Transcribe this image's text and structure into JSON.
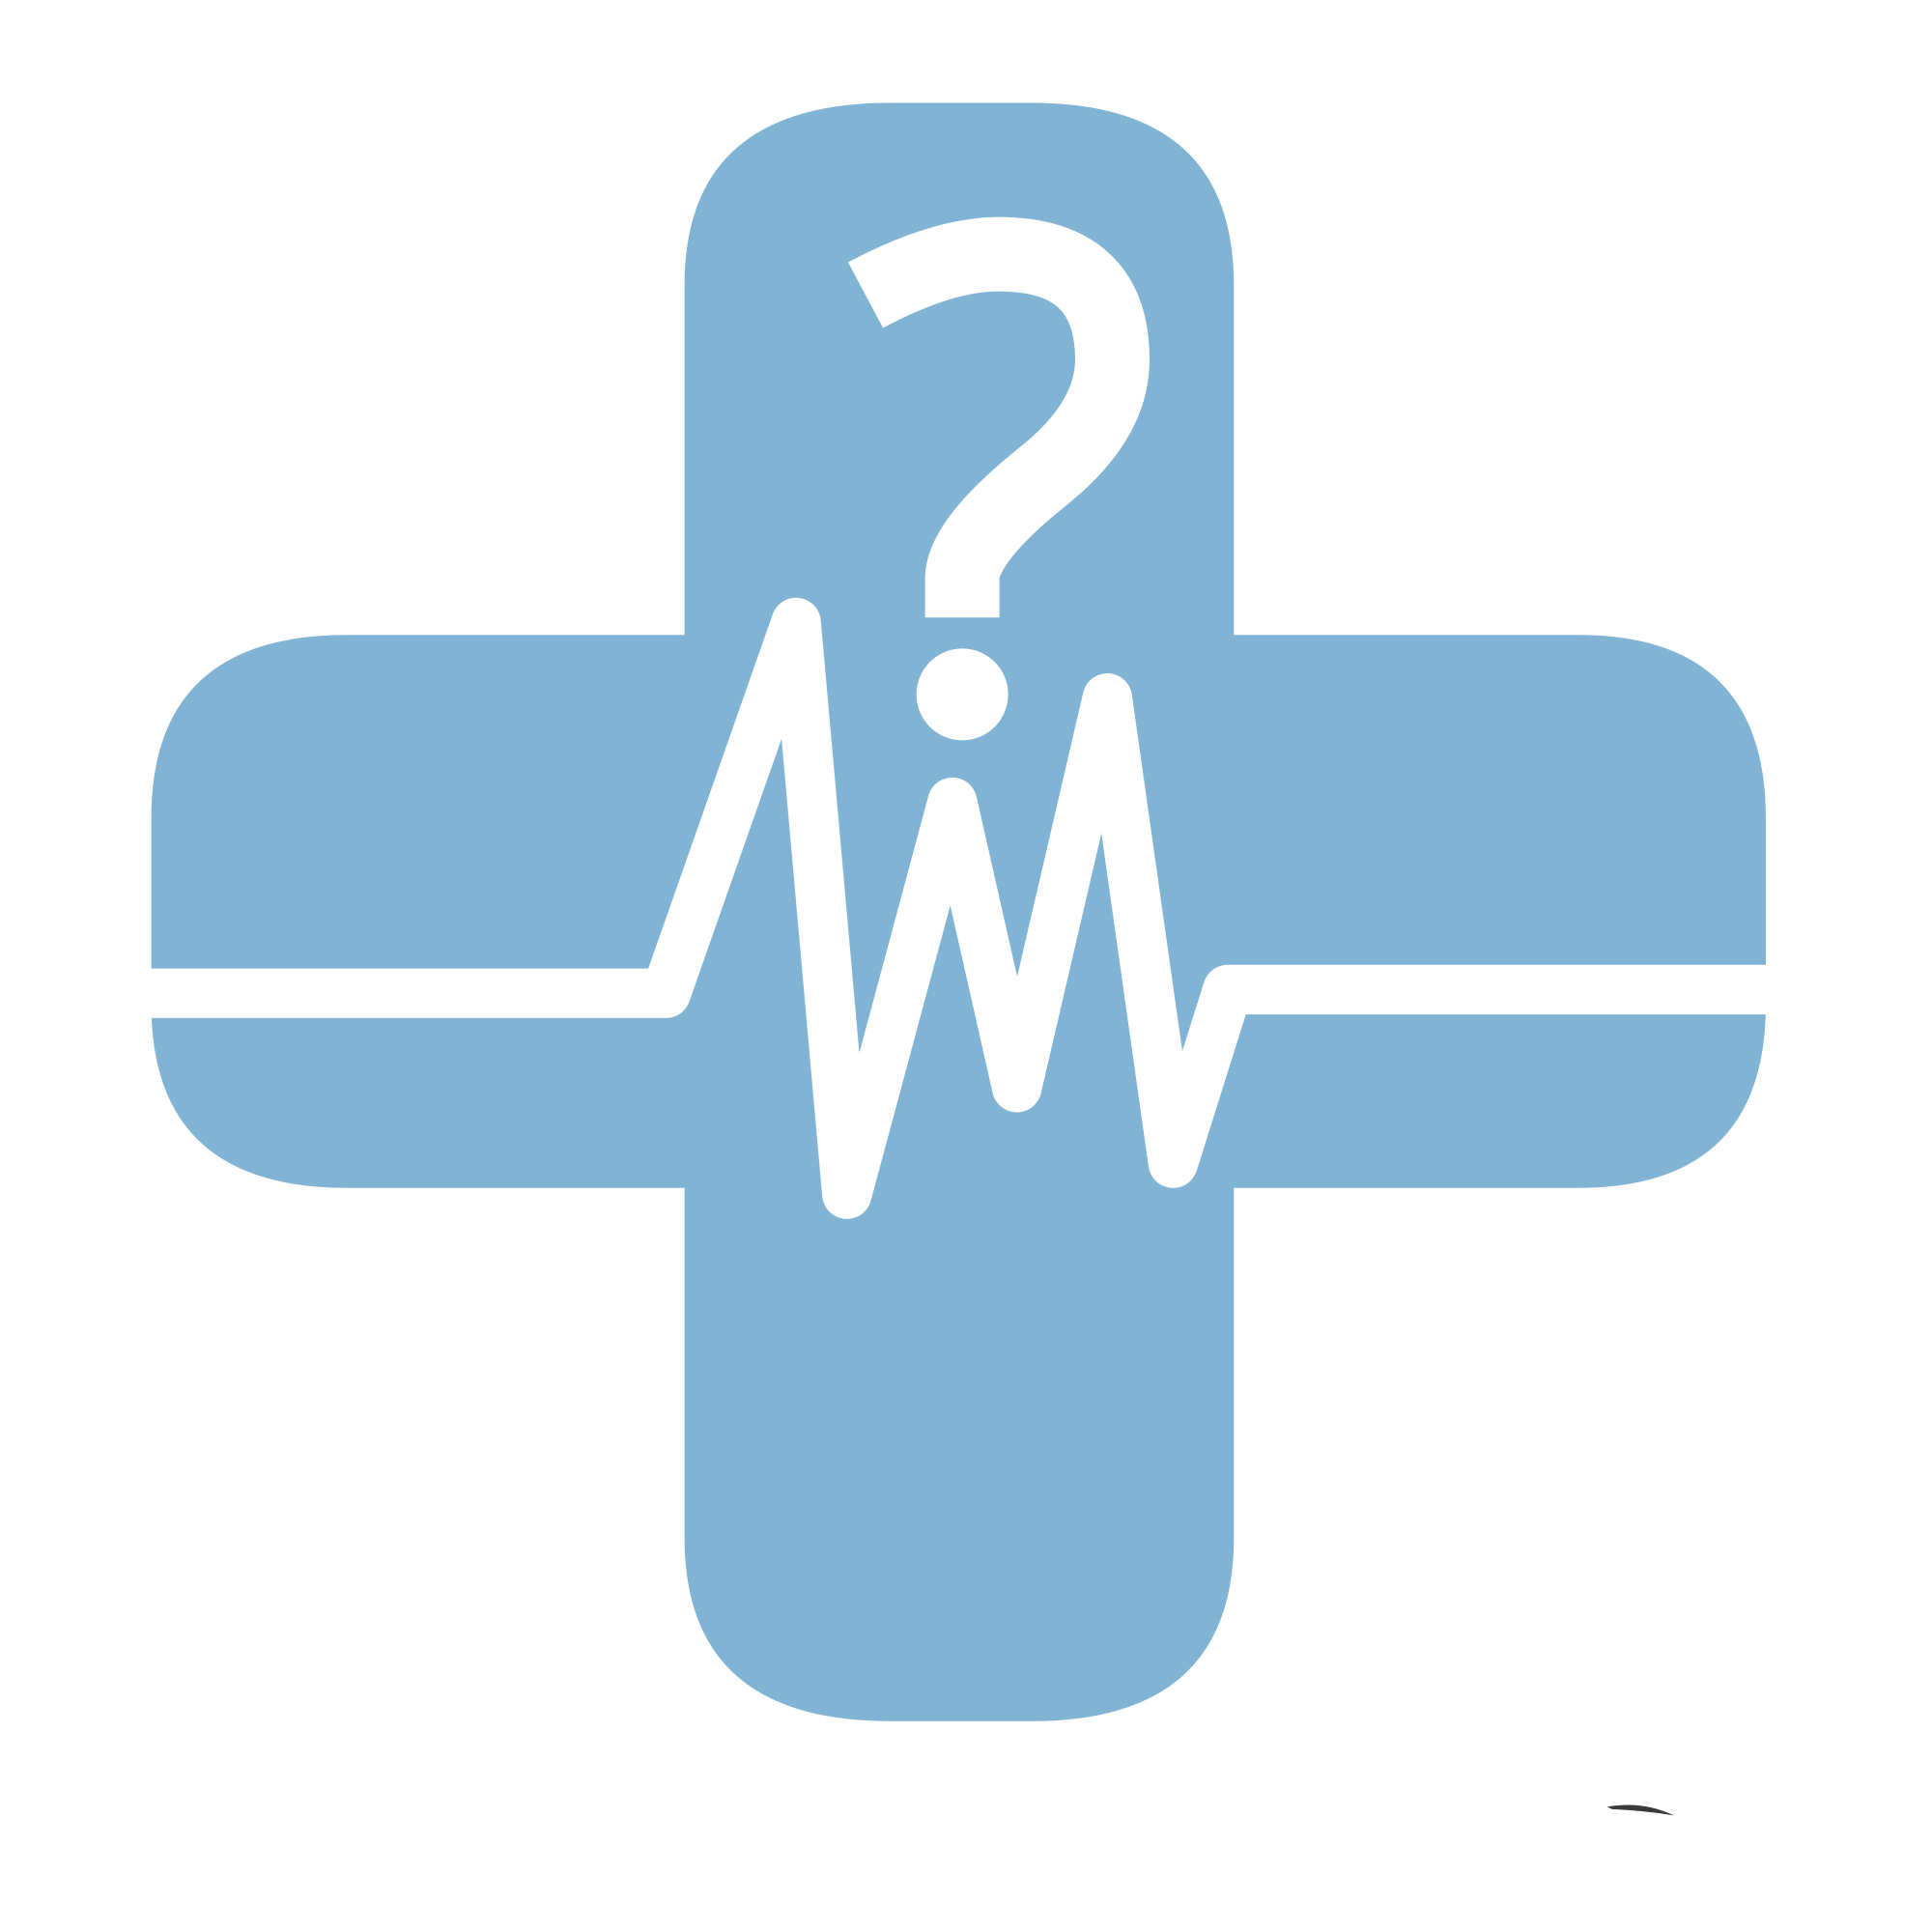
{
  "logo": {
    "cross_color": "#80b3d4",
    "mark_color": "#ffffff",
    "background_color": "#ffffff",
    "smudge_color": "#3a3a3a",
    "icons": [
      "medical-cross-icon",
      "question-mark-icon",
      "heartbeat-line-icon"
    ]
  }
}
